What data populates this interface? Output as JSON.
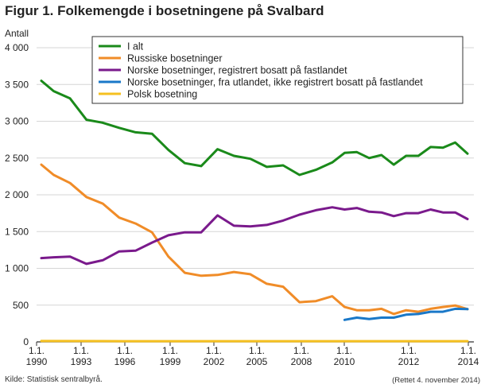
{
  "title": "Figur 1. Folkemengde i bosetningene på Svalbard",
  "source": "Kilde: Statistisk sentralbyrå.",
  "revised": "(Rettet 4. november 2014)",
  "colors": {
    "i_alt": "#1a8a1a",
    "russiske": "#f08c28",
    "norske_fastland": "#7a1a8c",
    "norske_utland": "#1a78c8",
    "polsk": "#f5c020"
  },
  "chart_data": {
    "type": "line",
    "ylabel": "Antall",
    "ylim": [
      0,
      4000
    ],
    "yticks": [
      0,
      500,
      1000,
      1500,
      2000,
      2500,
      3000,
      3500,
      4000
    ],
    "ytick_labels": [
      "0",
      "500",
      "1 000",
      "1 500",
      "2 000",
      "2 500",
      "3 000",
      "3 500",
      "4 000"
    ],
    "xlim": [
      1990,
      2014
    ],
    "xticks": [
      {
        "x": 1990,
        "top": "1.1.",
        "bottom": "1990"
      },
      {
        "x": 1993,
        "top": "1.1.",
        "bottom": "1993"
      },
      {
        "x": 1996,
        "top": "1.1.",
        "bottom": "1996"
      },
      {
        "x": 1999,
        "top": "1.1.",
        "bottom": "1999"
      },
      {
        "x": 2002,
        "top": "1.1.",
        "bottom": "2002"
      },
      {
        "x": 2005,
        "top": "1.1.",
        "bottom": "2005"
      },
      {
        "x": 2008,
        "top": "1.1.",
        "bottom": "2008"
      },
      {
        "x": 2010,
        "top": "1.1.",
        "bottom": "2010"
      },
      {
        "x": 2012,
        "top": "1.1.",
        "bottom": "2012"
      },
      {
        "x": 2014,
        "top": "1.1.",
        "bottom": "2014"
      }
    ],
    "grid": "horizontal",
    "legend_position": "top-right",
    "series": [
      {
        "key": "i_alt",
        "name": "I alt",
        "points": [
          [
            1990,
            3550
          ],
          [
            1990.75,
            3410
          ],
          [
            1991.75,
            3310
          ],
          [
            1992.75,
            3020
          ],
          [
            1993.75,
            2980
          ],
          [
            1994.75,
            2910
          ],
          [
            1995.75,
            2850
          ],
          [
            1996.75,
            2830
          ],
          [
            1997.75,
            2610
          ],
          [
            1998.75,
            2430
          ],
          [
            1999.75,
            2390
          ],
          [
            2000.75,
            2620
          ],
          [
            2001.75,
            2530
          ],
          [
            2002.75,
            2490
          ],
          [
            2003.75,
            2380
          ],
          [
            2004.75,
            2400
          ],
          [
            2005.75,
            2270
          ],
          [
            2006.75,
            2340
          ],
          [
            2007.75,
            2440
          ],
          [
            2008.5,
            2570
          ],
          [
            2009.25,
            2580
          ],
          [
            2010,
            2500
          ],
          [
            2010.75,
            2540
          ],
          [
            2011.5,
            2410
          ],
          [
            2012.25,
            2530
          ],
          [
            2013,
            2530
          ],
          [
            2013.75,
            2650
          ],
          [
            2014.5,
            2640
          ],
          [
            2015.25,
            2710
          ],
          [
            2016,
            2560
          ]
        ]
      },
      {
        "key": "russiske",
        "name": "Russiske bosetninger",
        "points": [
          [
            1990,
            2410
          ],
          [
            1990.75,
            2270
          ],
          [
            1991.75,
            2160
          ],
          [
            1992.75,
            1970
          ],
          [
            1993.75,
            1880
          ],
          [
            1994.75,
            1690
          ],
          [
            1995.75,
            1610
          ],
          [
            1996.75,
            1490
          ],
          [
            1997.75,
            1160
          ],
          [
            1998.75,
            940
          ],
          [
            1999.75,
            900
          ],
          [
            2000.75,
            910
          ],
          [
            2001.75,
            950
          ],
          [
            2002.75,
            920
          ],
          [
            2003.75,
            790
          ],
          [
            2004.75,
            750
          ],
          [
            2005.75,
            540
          ],
          [
            2006.75,
            555
          ],
          [
            2007.75,
            620
          ],
          [
            2008.5,
            475
          ],
          [
            2009.25,
            430
          ],
          [
            2010,
            430
          ],
          [
            2010.75,
            450
          ],
          [
            2011.5,
            380
          ],
          [
            2012.25,
            430
          ],
          [
            2013,
            410
          ],
          [
            2013.75,
            450
          ],
          [
            2014.5,
            475
          ],
          [
            2015.25,
            495
          ],
          [
            2016,
            445
          ]
        ]
      },
      {
        "key": "norske_fastland",
        "name": "Norske bosetninger, registrert bosatt på fastlandet",
        "points": [
          [
            1990,
            1140
          ],
          [
            1990.75,
            1150
          ],
          [
            1991.75,
            1160
          ],
          [
            1992.75,
            1060
          ],
          [
            1993.75,
            1110
          ],
          [
            1994.75,
            1230
          ],
          [
            1995.75,
            1240
          ],
          [
            1996.75,
            1350
          ],
          [
            1997.75,
            1450
          ],
          [
            1998.75,
            1490
          ],
          [
            1999.75,
            1490
          ],
          [
            2000.75,
            1720
          ],
          [
            2001.75,
            1580
          ],
          [
            2002.75,
            1570
          ],
          [
            2003.75,
            1590
          ],
          [
            2004.75,
            1650
          ],
          [
            2005.75,
            1730
          ],
          [
            2006.75,
            1790
          ],
          [
            2007.75,
            1830
          ],
          [
            2008.5,
            1800
          ],
          [
            2009.25,
            1820
          ],
          [
            2010,
            1770
          ],
          [
            2010.75,
            1760
          ],
          [
            2011.5,
            1710
          ],
          [
            2012.25,
            1750
          ],
          [
            2013,
            1750
          ],
          [
            2013.75,
            1800
          ],
          [
            2014.5,
            1760
          ],
          [
            2015.25,
            1760
          ],
          [
            2016,
            1670
          ]
        ]
      },
      {
        "key": "norske_utland",
        "name": "Norske bosetninger, fra utlandet, ikke registrert bosatt på fastlandet",
        "points": [
          [
            2008.5,
            300
          ],
          [
            2009.25,
            330
          ],
          [
            2010,
            310
          ],
          [
            2010.75,
            330
          ],
          [
            2011.5,
            330
          ],
          [
            2012.25,
            370
          ],
          [
            2013,
            380
          ],
          [
            2013.75,
            410
          ],
          [
            2014.5,
            410
          ],
          [
            2015.25,
            450
          ],
          [
            2016,
            445
          ]
        ]
      },
      {
        "key": "polsk",
        "name": "Polsk bosetning",
        "points": [
          [
            1990,
            12
          ],
          [
            1995,
            10
          ],
          [
            2000,
            10
          ],
          [
            2005,
            10
          ],
          [
            2010,
            10
          ],
          [
            2016,
            10
          ]
        ]
      }
    ]
  }
}
